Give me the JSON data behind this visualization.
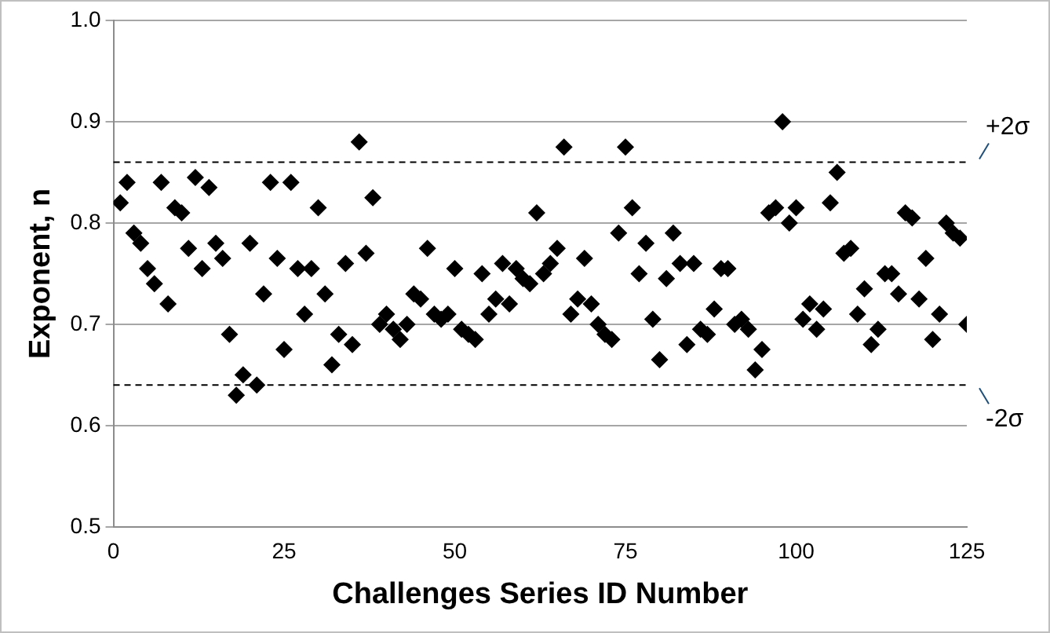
{
  "chart_data": {
    "type": "scatter",
    "xlabel": "Challenges Series ID Number",
    "ylabel": "Exponent, n",
    "x": [
      1,
      2,
      3,
      4,
      5,
      6,
      7,
      8,
      9,
      10,
      11,
      12,
      13,
      14,
      15,
      16,
      17,
      18,
      19,
      20,
      21,
      22,
      23,
      24,
      25,
      26,
      27,
      28,
      29,
      30,
      31,
      32,
      33,
      34,
      35,
      36,
      37,
      38,
      39,
      40,
      41,
      42,
      43,
      44,
      45,
      46,
      47,
      48,
      49,
      50,
      51,
      52,
      53,
      54,
      55,
      56,
      57,
      58,
      59,
      60,
      61,
      62,
      63,
      64,
      65,
      66,
      67,
      68,
      69,
      70,
      71,
      72,
      73,
      74,
      75,
      76,
      77,
      78,
      79,
      80,
      81,
      82,
      83,
      84,
      85,
      86,
      87,
      88,
      89,
      90,
      91,
      92,
      93,
      94,
      95,
      96,
      97,
      98,
      99,
      100,
      101,
      102,
      103,
      104,
      105,
      106,
      107,
      108,
      109,
      110,
      111,
      112,
      113,
      114,
      115,
      116,
      117,
      118,
      119,
      120,
      121,
      122,
      123,
      124,
      125
    ],
    "series": [
      {
        "color": "#000000",
        "values": [
          0.82,
          0.84,
          0.79,
          0.78,
          0.755,
          0.74,
          0.84,
          0.72,
          0.815,
          0.81,
          0.775,
          0.845,
          0.755,
          0.835,
          0.78,
          0.765,
          0.69,
          0.63,
          0.65,
          0.78,
          0.64,
          0.73,
          0.84,
          0.765,
          0.675,
          0.84,
          0.755,
          0.71,
          0.755,
          0.815,
          0.73,
          0.66,
          0.69,
          0.76,
          0.68,
          0.88,
          0.77,
          0.825,
          0.7,
          0.71,
          0.695,
          0.685,
          0.7,
          0.73,
          0.725,
          0.775,
          0.71,
          0.705,
          0.71,
          0.755,
          0.695,
          0.69,
          0.685,
          0.75,
          0.71,
          0.725,
          0.76,
          0.72,
          0.755,
          0.745,
          0.74,
          0.81,
          0.75,
          0.76,
          0.775,
          0.875,
          0.71,
          0.725,
          0.765,
          0.72,
          0.7,
          0.69,
          0.685,
          0.79,
          0.875,
          0.815,
          0.75,
          0.78,
          0.705,
          0.665,
          0.745,
          0.79,
          0.76,
          0.68,
          0.76,
          0.695,
          0.69,
          0.715,
          0.755,
          0.755,
          0.7,
          0.705,
          0.695,
          0.655,
          0.675,
          0.81,
          0.815,
          0.9,
          0.8,
          0.815,
          0.705,
          0.72,
          0.695,
          0.715,
          0.82,
          0.85,
          0.77,
          0.775,
          0.71,
          0.735,
          0.68,
          0.695,
          0.75,
          0.75,
          0.73,
          0.81,
          0.805,
          0.725,
          0.765,
          0.685,
          0.71,
          0.8,
          0.79,
          0.785,
          0.7
        ]
      }
    ],
    "xlim": [
      0,
      125
    ],
    "xticks": [
      0,
      25,
      50,
      75,
      100,
      125
    ],
    "ylim": [
      0.5,
      1
    ],
    "yticks": [
      {
        "value": 0.5,
        "label": "0.5"
      },
      {
        "value": 0.6,
        "label": "0.6"
      },
      {
        "value": 0.7,
        "label": "0.7"
      },
      {
        "value": 0.8,
        "label": "0.8"
      },
      {
        "value": 0.9,
        "label": "0.9"
      },
      {
        "value": 1,
        "label": "1.0"
      }
    ],
    "ref_lines": [
      {
        "axis": "y",
        "value": 0.86,
        "label": "+2σ",
        "color": "#000000",
        "line_style": "dashed"
      },
      {
        "axis": "y",
        "value": 0.64,
        "label": "-2σ",
        "color": "#000000",
        "line_style": "dashed"
      }
    ],
    "grid": "y",
    "marker": "diamond",
    "legend": false
  }
}
